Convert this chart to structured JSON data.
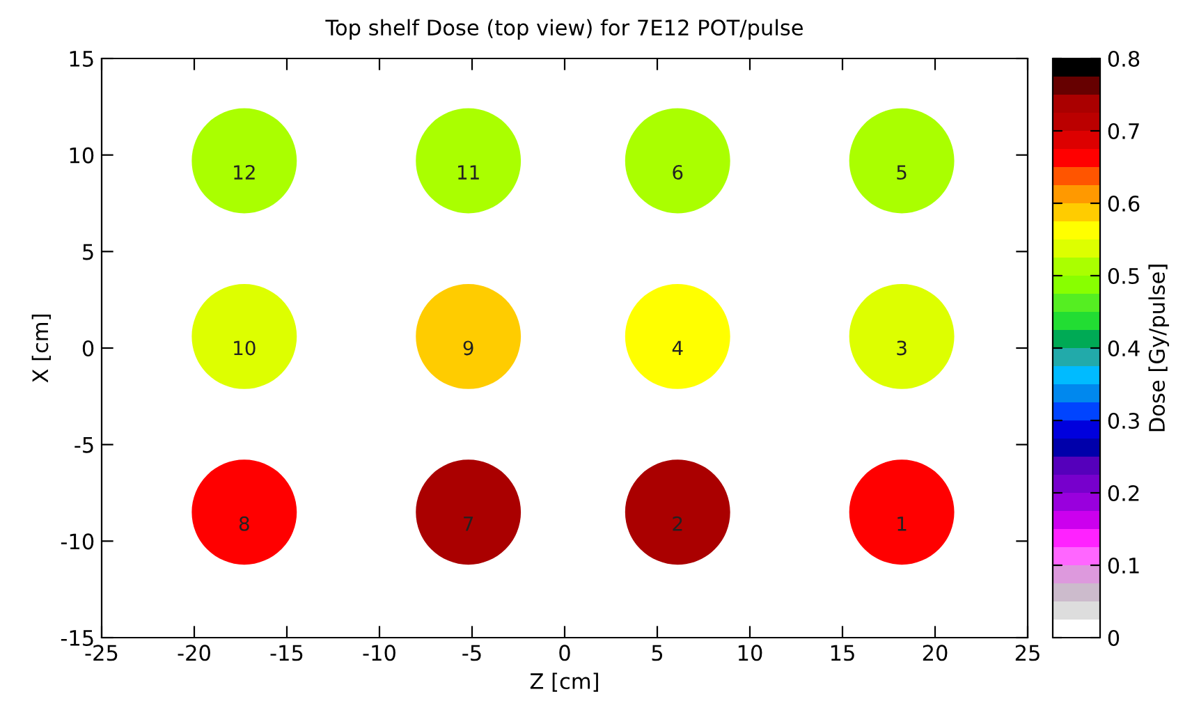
{
  "chart_data": {
    "type": "scatter",
    "title": "Top shelf Dose (top view) for 7E12 POT/pulse",
    "xlabel": "Z [cm]",
    "ylabel": "X [cm]",
    "clabel": "Dose [Gy/pulse]",
    "x": [
      18.2,
      6.1,
      18.2,
      6.1,
      18.2,
      6.1,
      -5.2,
      -17.3,
      -5.2,
      -17.3,
      -5.2,
      -17.3
    ],
    "values": [
      -8.5,
      -8.5,
      0.6,
      0.6,
      9.7,
      9.7,
      -8.5,
      -8.5,
      0.6,
      0.6,
      9.7,
      9.7
    ],
    "cvalues": [
      0.66,
      0.74,
      0.54,
      0.56,
      0.51,
      0.51,
      0.74,
      0.66,
      0.59,
      0.54,
      0.51,
      0.51
    ],
    "annotations": [
      {
        "text": "1",
        "x": 18.2,
        "y": -8.5
      },
      {
        "text": "2",
        "x": 6.1,
        "y": -8.5
      },
      {
        "text": "3",
        "x": 18.2,
        "y": 0.6
      },
      {
        "text": "4",
        "x": 6.1,
        "y": 0.6
      },
      {
        "text": "5",
        "x": 18.2,
        "y": 9.7
      },
      {
        "text": "6",
        "x": 6.1,
        "y": 9.7
      },
      {
        "text": "7",
        "x": -5.2,
        "y": -8.5
      },
      {
        "text": "8",
        "x": -17.3,
        "y": -8.5
      },
      {
        "text": "9",
        "x": -5.2,
        "y": 0.6
      },
      {
        "text": "10",
        "x": -17.3,
        "y": 0.6
      },
      {
        "text": "11",
        "x": -5.2,
        "y": 9.7
      },
      {
        "text": "12",
        "x": -17.3,
        "y": 9.7
      }
    ],
    "xlim": [
      -25,
      25
    ],
    "xticks": [
      -25,
      -20,
      -15,
      -10,
      -5,
      0,
      5,
      10,
      15,
      20,
      25
    ],
    "ylim": [
      -15,
      15
    ],
    "yticks": [
      -15,
      -10,
      -5,
      0,
      5,
      10,
      15
    ],
    "clim": [
      0,
      0.8
    ],
    "cticks": [
      0,
      0.1,
      0.2,
      0.3,
      0.4,
      0.5,
      0.6,
      0.7,
      0.8
    ],
    "grid": false,
    "legend": false,
    "marker": "circle"
  }
}
